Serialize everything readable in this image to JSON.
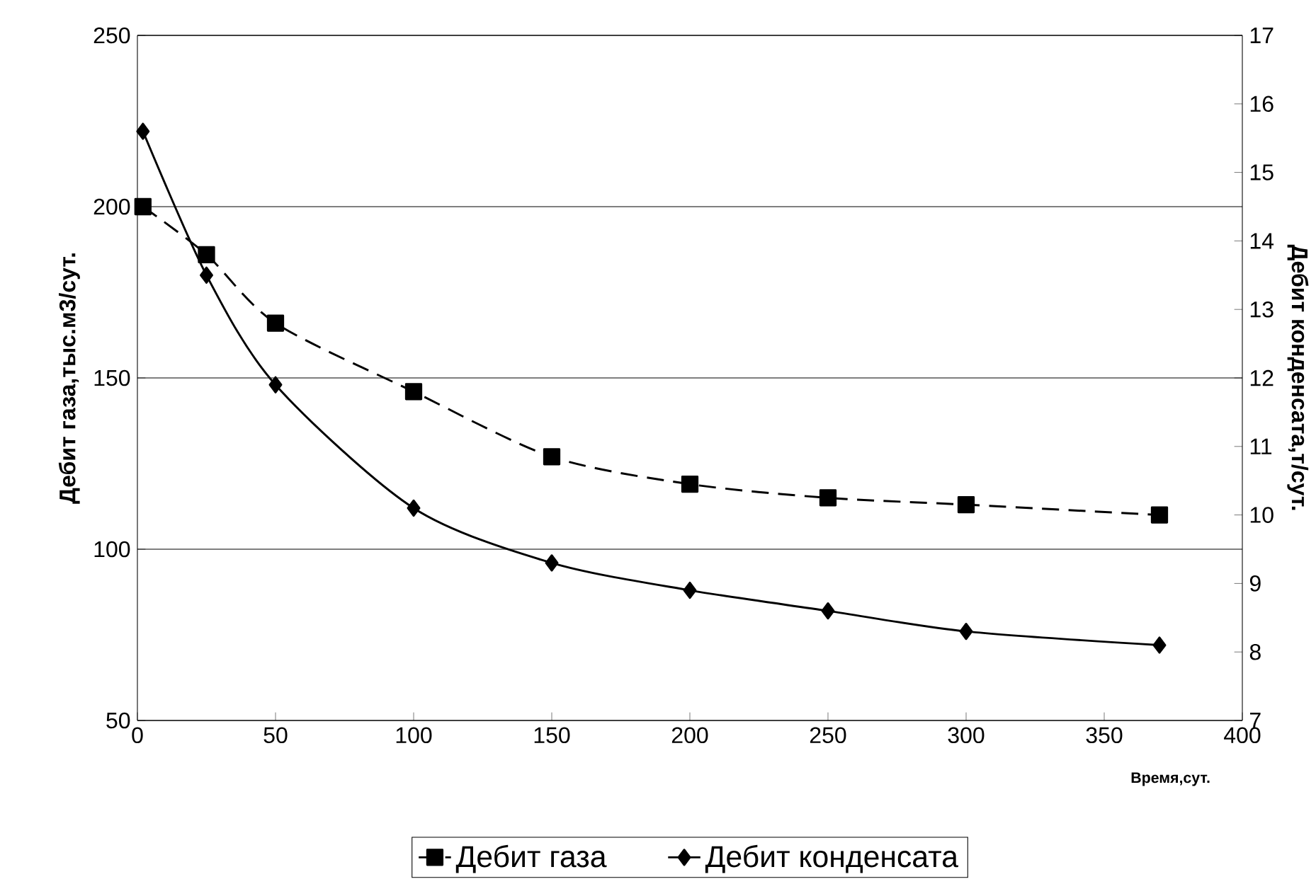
{
  "chart_data": {
    "type": "line",
    "xlabel": "Время,сут.",
    "ylabel": "Дебит газа,тыс.м3/сут.",
    "y2label": "Дебит конденсата,т/сут.",
    "xlim": [
      0,
      400
    ],
    "xticks": [
      0,
      50,
      100,
      150,
      200,
      250,
      300,
      350,
      400
    ],
    "ylim": [
      50,
      250
    ],
    "yticks": [
      50,
      100,
      150,
      200,
      250
    ],
    "y2lim": [
      7,
      17
    ],
    "y2ticks": [
      7,
      8,
      9,
      10,
      11,
      12,
      13,
      14,
      15,
      16,
      17
    ],
    "grid": "y",
    "legend": "bottom",
    "series": [
      {
        "name": "Дебит газа",
        "color": "#000000",
        "marker": "square",
        "line_style": "dashed",
        "x": [
          2,
          25,
          50,
          100,
          150,
          200,
          250,
          300,
          370
        ],
        "values": [
          200,
          186,
          166,
          146,
          127,
          119,
          115,
          113,
          110
        ]
      },
      {
        "name": "Дебит конденсата",
        "color": "#000000",
        "marker": "diamond",
        "line_style": "solid",
        "axis": "y2",
        "x": [
          2,
          25,
          50,
          100,
          150,
          200,
          250,
          300,
          370
        ],
        "values": [
          15.6,
          13.5,
          11.9,
          10.1,
          9.3,
          8.9,
          8.6,
          8.3,
          8.1
        ]
      }
    ]
  }
}
